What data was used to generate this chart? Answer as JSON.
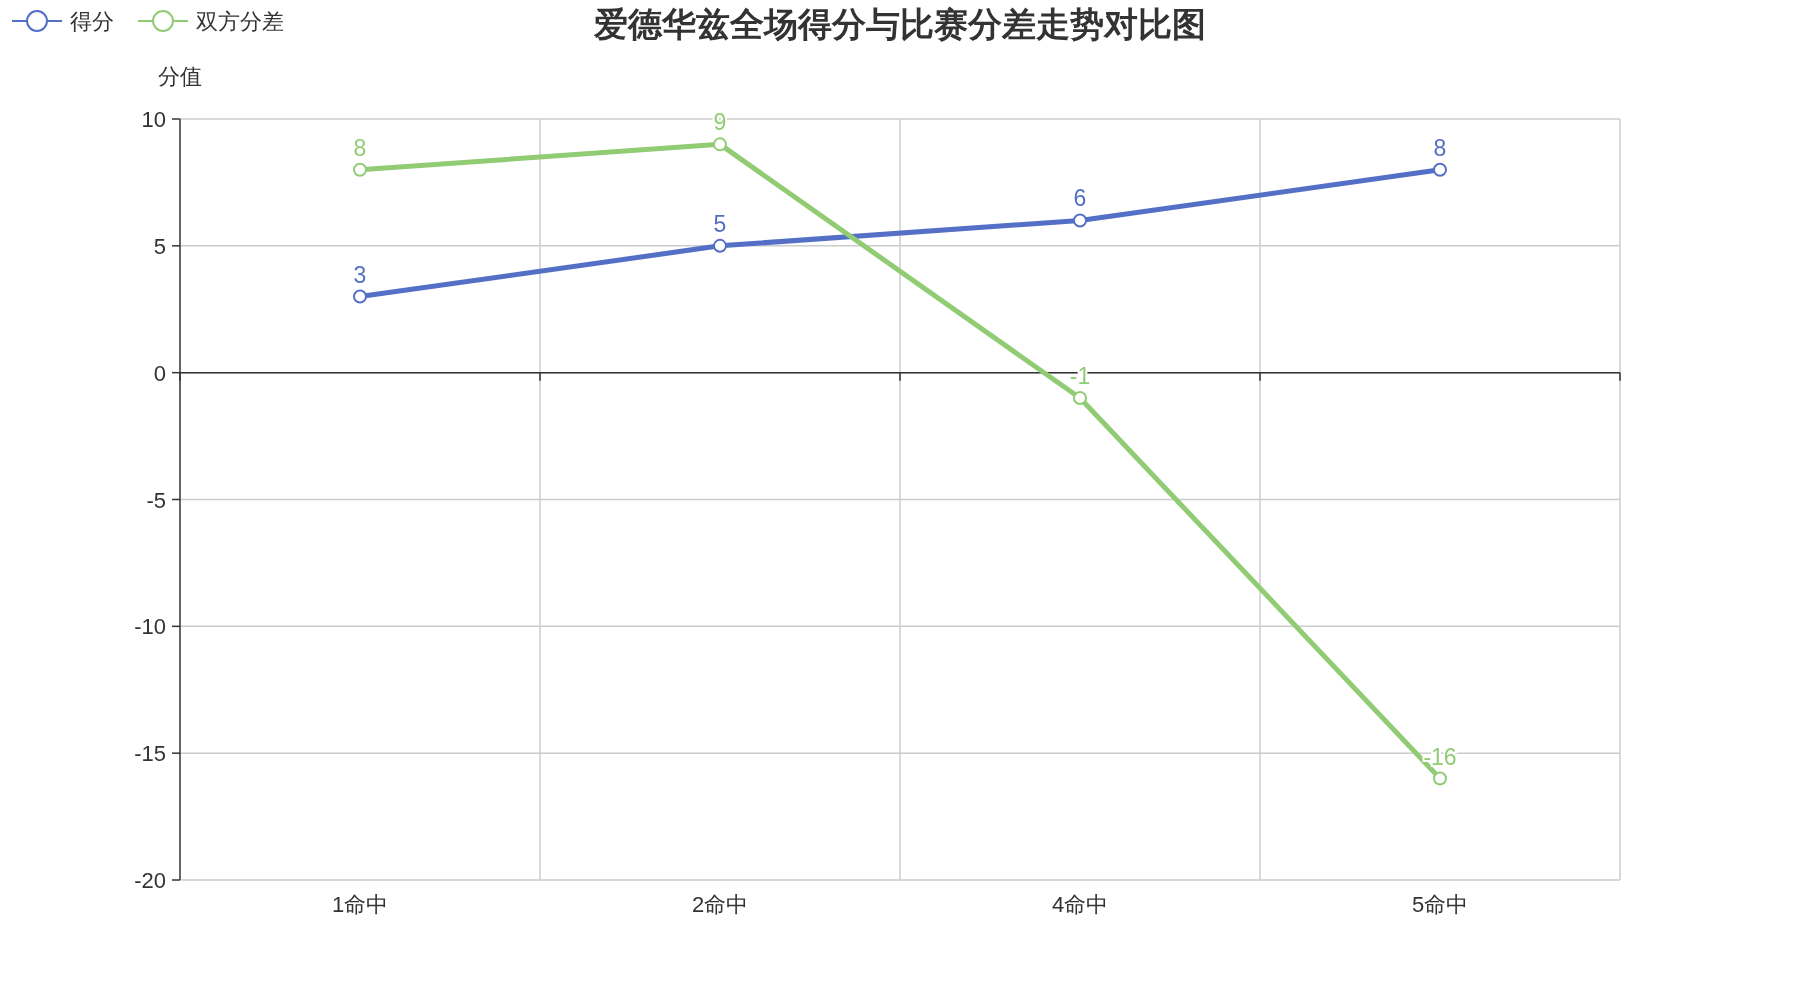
{
  "chart_data": {
    "type": "line",
    "title": "爱德华兹全场得分与比赛分差走势对比图",
    "ylabel": "分值",
    "categories": [
      "1命中",
      "2命中",
      "4命中",
      "5命中"
    ],
    "series": [
      {
        "name": "得分",
        "color": "#5470c6",
        "values": [
          3,
          5,
          6,
          8
        ]
      },
      {
        "name": "双方分差",
        "color": "#91cc75",
        "values": [
          8,
          9,
          -1,
          -16
        ]
      }
    ],
    "ylim": [
      -20,
      10
    ],
    "yticks": [
      -20,
      -15,
      -10,
      -5,
      0,
      5,
      10
    ],
    "grid": true,
    "legend": "top left",
    "marker": "circle",
    "line_style": "solid",
    "data_labels": true
  }
}
